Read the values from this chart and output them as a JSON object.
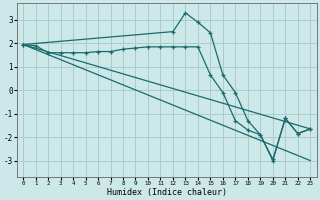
{
  "xlabel": "Humidex (Indice chaleur)",
  "xlim": [
    -0.5,
    23.5
  ],
  "ylim": [
    -3.7,
    3.7
  ],
  "yticks": [
    -3,
    -2,
    -1,
    0,
    1,
    2,
    3
  ],
  "xticks": [
    0,
    1,
    2,
    3,
    4,
    5,
    6,
    7,
    8,
    9,
    10,
    11,
    12,
    13,
    14,
    15,
    16,
    17,
    18,
    19,
    20,
    21,
    22,
    23
  ],
  "xtick_labels": [
    "0",
    "1",
    "2",
    "3",
    "4",
    "5",
    "6",
    "7",
    "8",
    "9",
    "10",
    "11",
    "12",
    "13",
    "14",
    "15",
    "16",
    "17",
    "18",
    "19",
    "20",
    "21",
    "22",
    "23"
  ],
  "background_color": "#cce8e8",
  "grid_color": "#aacccc",
  "line_color": "#1a6b6b",
  "line1_x": [
    0,
    1,
    2,
    3,
    4,
    5,
    6,
    7,
    8,
    9,
    10,
    11,
    12,
    13,
    14,
    15,
    16,
    17,
    18,
    19,
    20,
    21,
    22,
    23
  ],
  "line1_y": [
    1.95,
    1.9,
    1.6,
    1.6,
    1.6,
    1.6,
    1.65,
    1.65,
    1.75,
    1.8,
    1.85,
    1.85,
    1.85,
    1.85,
    1.85,
    0.65,
    -0.1,
    -1.3,
    -1.7,
    -1.9,
    -3.0,
    -1.2,
    -1.85,
    -1.65
  ],
  "line2_x": [
    0,
    12,
    13,
    14,
    15,
    16,
    17,
    18,
    19,
    20,
    21,
    22,
    23
  ],
  "line2_y": [
    1.95,
    2.5,
    3.3,
    2.9,
    2.45,
    0.65,
    -0.1,
    -1.3,
    -1.9,
    -2.95,
    -1.2,
    -1.85,
    -1.65
  ],
  "line3_x": [
    0,
    23
  ],
  "line3_y": [
    1.95,
    -1.65
  ],
  "line4_x": [
    0,
    23
  ],
  "line4_y": [
    1.95,
    -3.0
  ]
}
